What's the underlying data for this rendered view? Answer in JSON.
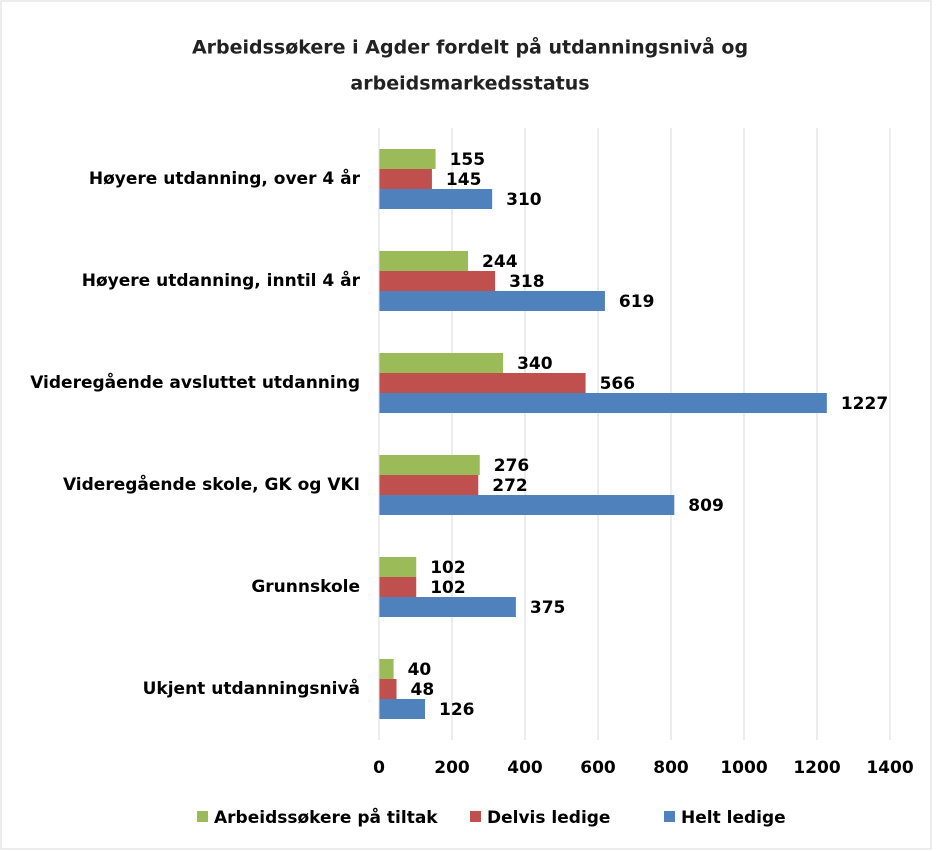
{
  "chart_data": {
    "type": "bar",
    "orientation": "horizontal",
    "title": [
      "Arbeidssøkere i Agder fordelt på utdanningsnivå og",
      "arbeidsmarkedsstatus"
    ],
    "categories": [
      "Høyere utdanning, over 4 år",
      "Høyere utdanning, inntil 4 år",
      "Videregående avsluttet utdanning",
      "Videregående skole, GK og VKI",
      "Grunnskole",
      "Ukjent utdanningsnivå"
    ],
    "series": [
      {
        "name": "Arbeidssøkere på tiltak",
        "color": "#9bbb59",
        "values": [
          155,
          244,
          340,
          276,
          102,
          40
        ]
      },
      {
        "name": "Delvis ledige",
        "color": "#c0504d",
        "values": [
          145,
          318,
          566,
          272,
          102,
          48
        ]
      },
      {
        "name": "Helt ledige",
        "color": "#4f81bd",
        "values": [
          310,
          619,
          1227,
          809,
          375,
          126
        ]
      }
    ],
    "xlim": [
      0,
      1400
    ],
    "xticks": [
      0,
      200,
      400,
      600,
      800,
      1000,
      1200,
      1400
    ],
    "grid": true,
    "legend": "bottom"
  }
}
